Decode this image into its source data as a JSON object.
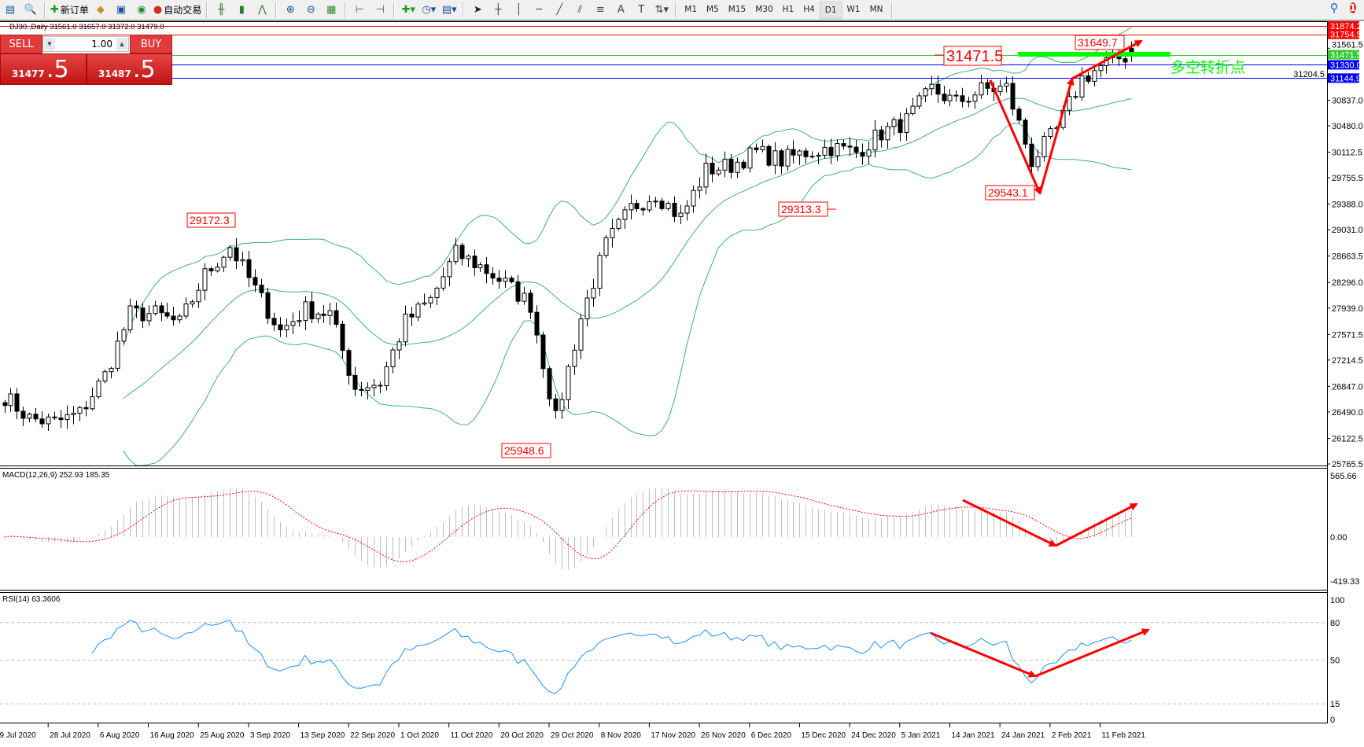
{
  "toolbar": {
    "new_order": "新订单",
    "auto_trading": "自动交易",
    "timeframes": [
      "M1",
      "M5",
      "M15",
      "M30",
      "H1",
      "H4",
      "D1",
      "W1",
      "MN"
    ],
    "selected_timeframe": "D1",
    "notifications_count": "1",
    "icons": [
      "new-chart-icon",
      "zoom-navigator-icon",
      "new-order-icon",
      "metaeditor-icon",
      "terminal-icon",
      "signals-icon",
      "auto-trading-icon",
      "bar-chart-icon",
      "candlestick-icon",
      "line-chart-icon",
      "zoom-in-icon",
      "zoom-out-icon",
      "tile-windows-icon",
      "chart-shift-icon",
      "autoscroll-icon",
      "indicators-icon",
      "periods-icon",
      "templates-icon",
      "cursor-icon",
      "crosshair-icon",
      "vertical-line-icon",
      "horizontal-line-icon",
      "trendline-icon",
      "fibonacci-icon",
      "fibonacci-fan-icon",
      "text-icon",
      "text-label-icon",
      "arrows-icon",
      "search-icon",
      "chat-icon"
    ]
  },
  "chart_header": "DJ30.,Daily  31561.0 31657.0 31372.0 31479.0",
  "trade_panel": {
    "sell_label": "SELL",
    "buy_label": "BUY",
    "lot": "1.00",
    "sell_price_main": "31477",
    "sell_price_big": ".5",
    "buy_price_main": "31487",
    "buy_price_big": ".5"
  },
  "annotations": {
    "labels": [
      "29172.3",
      "25948.6",
      "29313.3",
      "29543.1",
      "31471.5",
      "31649.7"
    ],
    "note": "多空转折点",
    "note_color": "#00ff00",
    "arrow_color": "#ff0000"
  },
  "colors": {
    "bollinger": "#3cb371",
    "bull": "#ffffff",
    "bear": "#000000",
    "rsi": "#1e90ff",
    "macd_hist": "#c0c0c0",
    "macd_signal": "#ff0000"
  },
  "chart_data": [
    {
      "type": "candlestick",
      "symbol": "DJ30.",
      "timeframe": "Daily",
      "ohlc_last": {
        "open": 31561.0,
        "high": 31657.0,
        "low": 31372.0,
        "close": 31479.0
      },
      "close_path": [
        26710,
        26400,
        26340,
        26470,
        27000,
        27860,
        27860,
        27720,
        28400,
        28800,
        28200,
        27620,
        27920,
        27860,
        26830,
        26900,
        27750,
        28050,
        28700,
        28520,
        28280,
        27990,
        26380,
        27800,
        28820,
        29330,
        29540,
        29200,
        29860,
        29930,
        30110,
        30000,
        30110,
        30180,
        30110,
        30380,
        30550,
        30990,
        30800,
        30980,
        31010,
        29990,
        30420,
        31140,
        31360,
        31480
      ],
      "ylim": [
        25755,
        31938
      ],
      "y_ticks": [
        "31561.5",
        "31204.5",
        "30837.0",
        "30480.0",
        "30112.5",
        "29755.5",
        "29388.0",
        "29031.0",
        "28663.5",
        "28296.0",
        "27939.0",
        "27571.5",
        "27214.5",
        "26847.0",
        "26490.0",
        "26122.5",
        "25765.5"
      ],
      "x_ticks": [
        "9 Jul 2020",
        "28 Jul 2020",
        "6 Aug 2020",
        "16 Aug 2020",
        "25 Aug 2020",
        "3 Sep 2020",
        "13 Sep 2020",
        "22 Sep 2020",
        "1 Oct 2020",
        "11 Oct 2020",
        "20 Oct 2020",
        "29 Oct 2020",
        "8 Nov 2020",
        "17 Nov 2020",
        "26 Nov 2020",
        "6 Dec 2020",
        "15 Dec 2020",
        "24 Dec 2020",
        "5 Jan 2021",
        "14 Jan 2021",
        "24 Jan 2021",
        "2 Feb 2021",
        "11 Feb 2021"
      ],
      "indicator": "Bollinger Bands",
      "hlines": [
        {
          "value": "31874.2",
          "color": "#ff0000"
        },
        {
          "value": "31754.5",
          "color": "#ff0000"
        },
        {
          "value": "31471.5",
          "color": "#32cd32"
        },
        {
          "value": "31330.0",
          "color": "#0000ff"
        },
        {
          "value": "31144.9",
          "color": "#0000ff"
        }
      ]
    },
    {
      "type": "bar",
      "title": "MACD(12,26,9) 252.93 185.35",
      "ylim": [
        -419.33,
        565.66
      ],
      "y_ticks": [
        "565.66",
        "0.00",
        "-419.33"
      ]
    },
    {
      "type": "line",
      "title": "RSI(14) 63.3606",
      "ylim": [
        0,
        100
      ],
      "y_ticks": [
        "100",
        "80",
        "50",
        "15",
        "0"
      ],
      "levels": [
        80,
        50,
        15
      ]
    }
  ]
}
